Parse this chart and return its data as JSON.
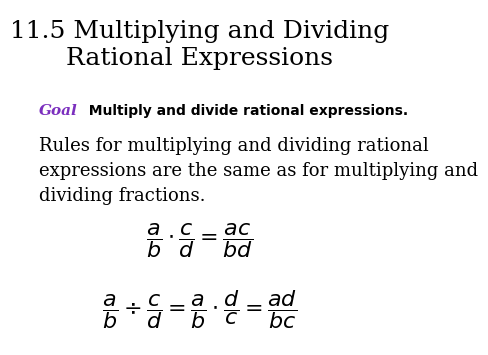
{
  "title": "11.5 Multiplying and Dividing\nRational Expressions",
  "title_fontsize": 18,
  "title_color": "#000000",
  "goal_label": "Goal",
  "goal_color": "#7B2FBE",
  "goal_text": "  Multiply and divide rational expressions.",
  "goal_fontsize": 10,
  "body_text": "Rules for multiplying and dividing rational\nexpressions are the same as for multiplying and\ndividing fractions.",
  "body_fontsize": 13,
  "formula1": "$\\dfrac{a}{b} \\cdot \\dfrac{c}{d} = \\dfrac{ac}{bd}$",
  "formula2": "$\\dfrac{a}{b} \\div \\dfrac{c}{d} = \\dfrac{a}{b} \\cdot \\dfrac{d}{c} = \\dfrac{ad}{bc}$",
  "formula_fontsize": 16,
  "background_color": "#ffffff"
}
